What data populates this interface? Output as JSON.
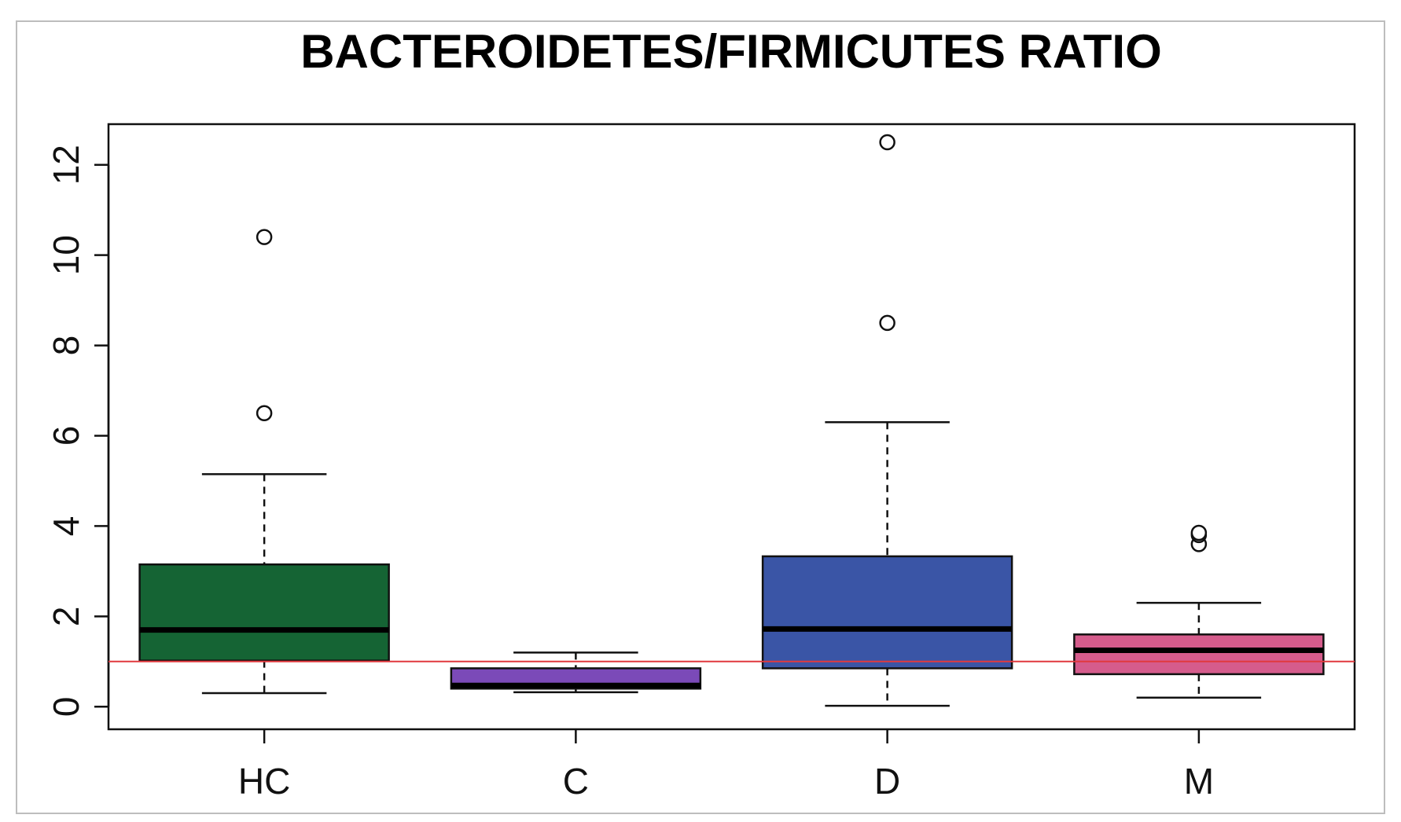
{
  "chart_data": {
    "type": "boxplot",
    "title": "BACTEROIDETES/FIRMICUTES RATIO",
    "xlabel": "",
    "ylabel": "",
    "ylim": [
      -0.5,
      12.9
    ],
    "yticks": [
      0,
      2,
      4,
      6,
      8,
      10,
      12
    ],
    "y_tick_labels": [
      "0",
      "2",
      "4",
      "6",
      "8",
      "10",
      "12"
    ],
    "reference_line": {
      "y": 1,
      "color": "#e0393e"
    },
    "grid": false,
    "legend": "none",
    "categories": [
      "HC",
      "C",
      "D",
      "M"
    ],
    "boxes": [
      {
        "category": "HC",
        "color": "#156434",
        "whisker_low": 0.3,
        "q1": 1.02,
        "median": 1.7,
        "q3": 3.15,
        "whisker_high": 5.15,
        "outliers": [
          6.5,
          10.4
        ]
      },
      {
        "category": "C",
        "color": "#7b4ab8",
        "whisker_low": 0.32,
        "q1": 0.4,
        "median": 0.47,
        "q3": 0.85,
        "whisker_high": 1.2,
        "outliers": []
      },
      {
        "category": "D",
        "color": "#3a55a6",
        "whisker_low": 0.02,
        "q1": 0.85,
        "median": 1.72,
        "q3": 3.33,
        "whisker_high": 6.3,
        "outliers": [
          8.5,
          12.5
        ]
      },
      {
        "category": "M",
        "color": "#d55c8c",
        "whisker_low": 0.2,
        "q1": 0.72,
        "median": 1.25,
        "q3": 1.6,
        "whisker_high": 2.3,
        "outliers": [
          3.6,
          3.8,
          3.85
        ]
      }
    ]
  }
}
